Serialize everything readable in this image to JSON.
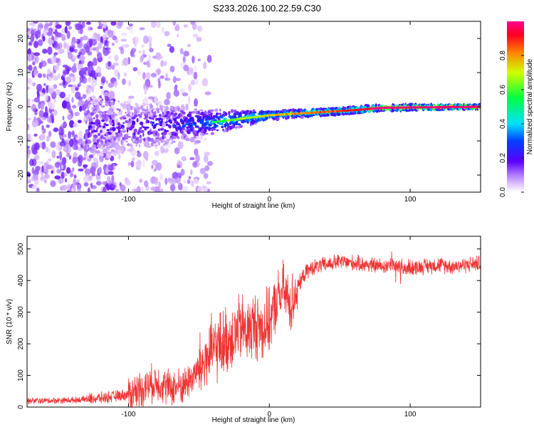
{
  "title": "S233.2026.100.22.59.C30",
  "chart_data": [
    {
      "type": "heatmap",
      "xlabel": "Height of straight line (km)",
      "ylabel": "Frequency (Hz)",
      "xlim": [
        -172,
        150
      ],
      "ylim": [
        -25,
        25
      ],
      "x_ticks": [
        -100,
        0,
        100
      ],
      "y_ticks": [
        -20,
        -10,
        0,
        10,
        20
      ],
      "colorbar": {
        "label": "Normalized spectral amplitude",
        "range": [
          0.0,
          1.0
        ],
        "ticks": [
          0.0,
          0.2,
          0.4,
          0.6,
          0.8
        ],
        "tick_labels": [
          "0.0",
          "0.2",
          "0.4",
          "0.6",
          "0.8"
        ]
      },
      "ridge": {
        "x": [
          -100,
          -80,
          -60,
          -40,
          -20,
          0,
          20,
          40,
          60,
          80,
          100,
          150
        ],
        "frequency": [
          -6,
          -5.5,
          -5,
          -4.5,
          -3.5,
          -2.5,
          -2,
          -1.5,
          -1,
          -0.3,
          -0.2,
          0
        ],
        "amplitude": [
          0.2,
          0.25,
          0.3,
          0.4,
          0.5,
          0.6,
          0.65,
          0.7,
          0.75,
          0.85,
          0.9,
          0.95
        ]
      }
    },
    {
      "type": "line",
      "xlabel": "Height of straight line (km)",
      "ylabel": "SNR (10 * v/v)",
      "xlim": [
        -172,
        150
      ],
      "ylim": [
        0,
        540
      ],
      "x_ticks": [
        -100,
        0,
        100
      ],
      "y_ticks": [
        0,
        100,
        200,
        300,
        400,
        500
      ],
      "color": "#ee3333",
      "x": [
        -172,
        -160,
        -140,
        -130,
        -120,
        -100,
        -90,
        -80,
        -70,
        -60,
        -50,
        -40,
        -30,
        -20,
        -15,
        -10,
        -5,
        0,
        5,
        10,
        15,
        20,
        25,
        30,
        40,
        50,
        60,
        70,
        80,
        90,
        100,
        110,
        120,
        130,
        140,
        150
      ],
      "y": [
        20,
        20,
        22,
        25,
        28,
        40,
        60,
        80,
        60,
        70,
        120,
        180,
        210,
        250,
        240,
        260,
        250,
        270,
        330,
        370,
        320,
        380,
        420,
        440,
        450,
        460,
        455,
        450,
        445,
        450,
        440,
        445,
        450,
        445,
        450,
        455
      ]
    }
  ]
}
